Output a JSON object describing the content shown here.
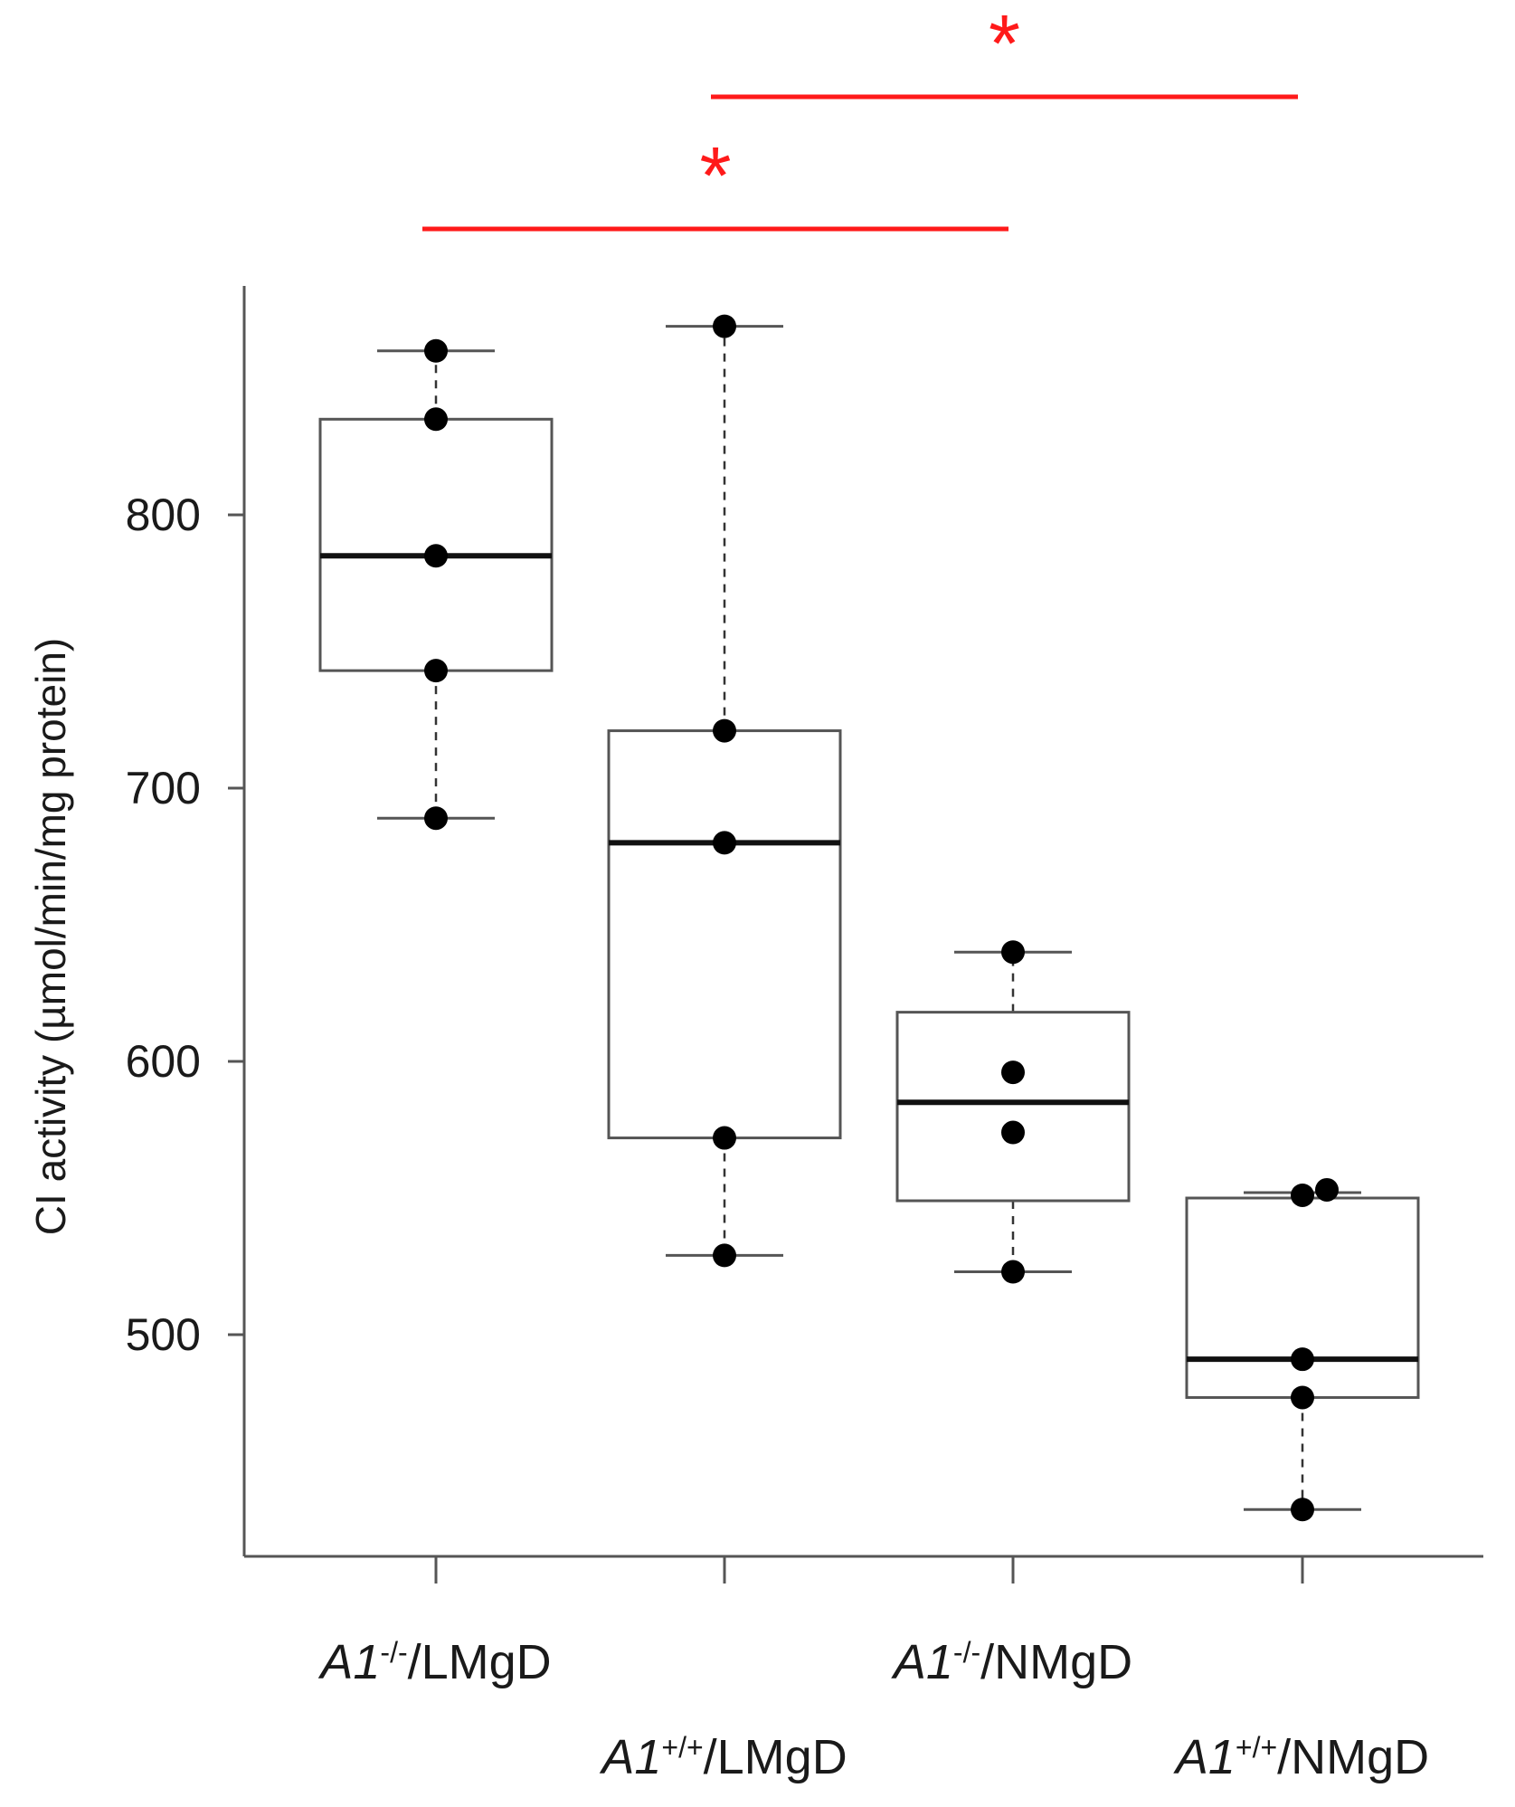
{
  "chart_data": {
    "type": "box",
    "title": "",
    "xlabel": "",
    "ylabel": "CI activity (µmol/min/mg protein)",
    "ylim": [
      420,
      885
    ],
    "yticks": [
      500,
      600,
      700,
      800
    ],
    "categories": [
      {
        "gene": "A1",
        "genotype": "-/-",
        "diet": "/LMgD"
      },
      {
        "gene": "A1",
        "genotype": "+/+",
        "diet": "/LMgD"
      },
      {
        "gene": "A1",
        "genotype": "-/-",
        "diet": "/NMgD"
      },
      {
        "gene": "A1",
        "genotype": "+/+",
        "diet": "/NMgD"
      }
    ],
    "boxes": [
      {
        "whisker_low": 689,
        "q1": 743,
        "median": 785,
        "q3": 835,
        "whisker_high": 860
      },
      {
        "whisker_low": 529,
        "q1": 572,
        "median": 680,
        "q3": 721,
        "whisker_high": 869
      },
      {
        "whisker_low": 523,
        "q1": 549,
        "median": 585,
        "q3": 618,
        "whisker_high": 640
      },
      {
        "whisker_low": 436,
        "q1": 477,
        "median": 491,
        "q3": 550,
        "whisker_high": 552
      }
    ],
    "points": [
      [
        860,
        835,
        785,
        743,
        689
      ],
      [
        869,
        721,
        680,
        572,
        529
      ],
      [
        640,
        596,
        574,
        523
      ],
      [
        551,
        553,
        491,
        477,
        436
      ]
    ],
    "significance": [
      {
        "from": 0,
        "to": 2,
        "label": "*",
        "level": 1
      },
      {
        "from": 1,
        "to": 3,
        "label": "*",
        "level": 2
      }
    ],
    "colors": {
      "axis": "#555555",
      "box": "#555555",
      "median": "#111111",
      "point": "#000000",
      "significance": "#ff1a1a"
    }
  }
}
